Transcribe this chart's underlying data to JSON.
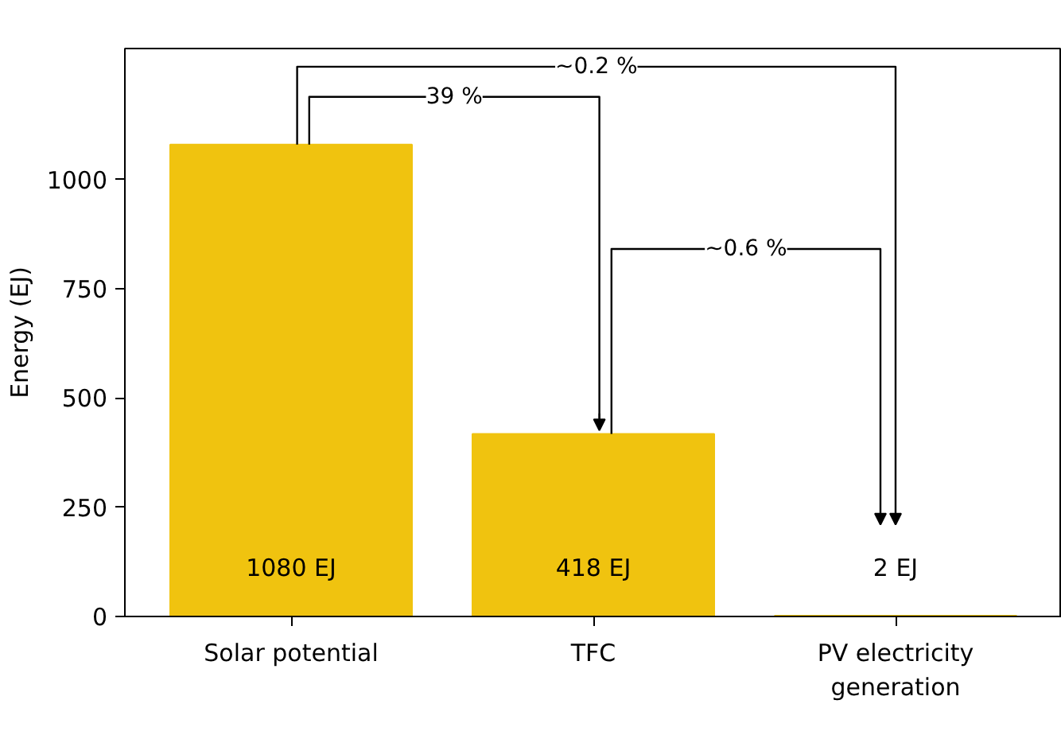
{
  "chart_data": {
    "type": "bar",
    "ylabel": "Energy (EJ)",
    "categories": [
      "Solar potential",
      "TFC",
      "PV electricity\ngeneration"
    ],
    "values": [
      1080,
      418,
      2
    ],
    "color": "#f0c30f",
    "value_labels": [
      "1080 EJ",
      "418 EJ",
      "2 EJ"
    ],
    "ylim": [
      0,
      1300
    ],
    "yticks": [
      0,
      250,
      500,
      750,
      1000
    ],
    "grid": false,
    "annotations": [
      "39 %",
      "~0.6 %",
      "~0.2 %"
    ]
  }
}
